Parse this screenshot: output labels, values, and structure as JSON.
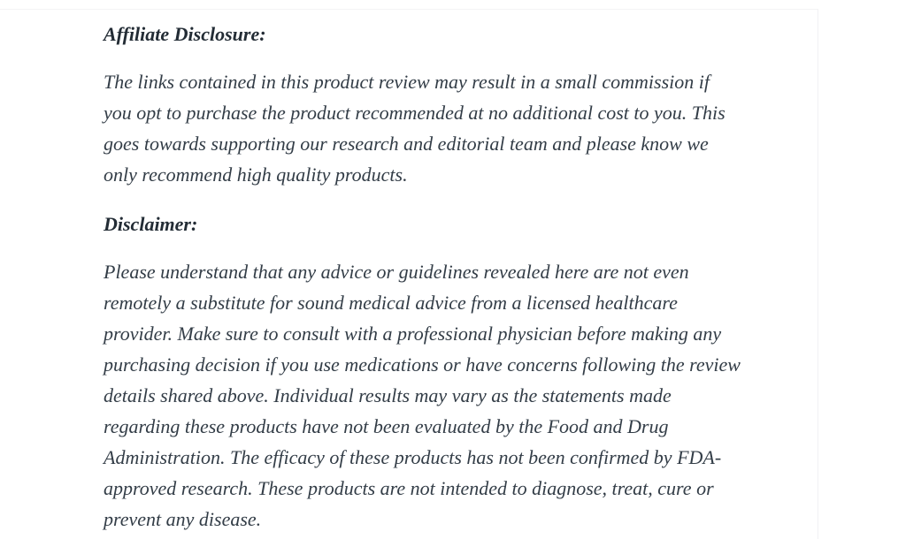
{
  "document": {
    "affiliate": {
      "heading": "Affiliate Disclosure:",
      "paragraph_lines": [
        "The links contained in this product review may result in a small commission if",
        "you opt to purchase the product recommended at no additional cost to you. This",
        "goes towards supporting our research and editorial team and please know we",
        "only recommend high quality products."
      ],
      "paragraph_text": "The links contained in this product review may result in a small commission if you opt to purchase the product recommended at no additional cost to you. This goes towards supporting our research and editorial team and please know we only recommend high quality products."
    },
    "disclaimer": {
      "heading": "Disclaimer:",
      "paragraph_lines": [
        "Please understand that any advice or guidelines revealed here are not even",
        "remotely a substitute for sound medical advice from a licensed healthcare",
        "provider. Make sure to consult with a professional physician before making any",
        "purchasing decision if you use medications or have concerns following the review",
        "details shared above. Individual results may vary as the statements made",
        "regarding these products have not been evaluated by the Food and Drug",
        "Administration. The efficacy of these products has not been confirmed by FDA-",
        "approved research. These products are not intended to diagnose, treat, cure or",
        "prevent any disease."
      ],
      "paragraph_text": "Please understand that any advice or guidelines revealed here are not even remotely a substitute for sound medical advice from a licensed healthcare provider. Make sure to consult with a professional physician before making any purchasing decision if you use medications or have concerns following the review details shared above. Individual results may vary as the statements made regarding these products have not been evaluated by the Food and Drug Administration. The efficacy of these products has not been confirmed by FDA-approved research. These products are not intended to diagnose, treat, cure or prevent any disease."
    },
    "colors": {
      "background": "#ffffff",
      "heading_text": "#232c35",
      "body_text": "#333d47",
      "card_edge": "#f1f1f3"
    }
  }
}
